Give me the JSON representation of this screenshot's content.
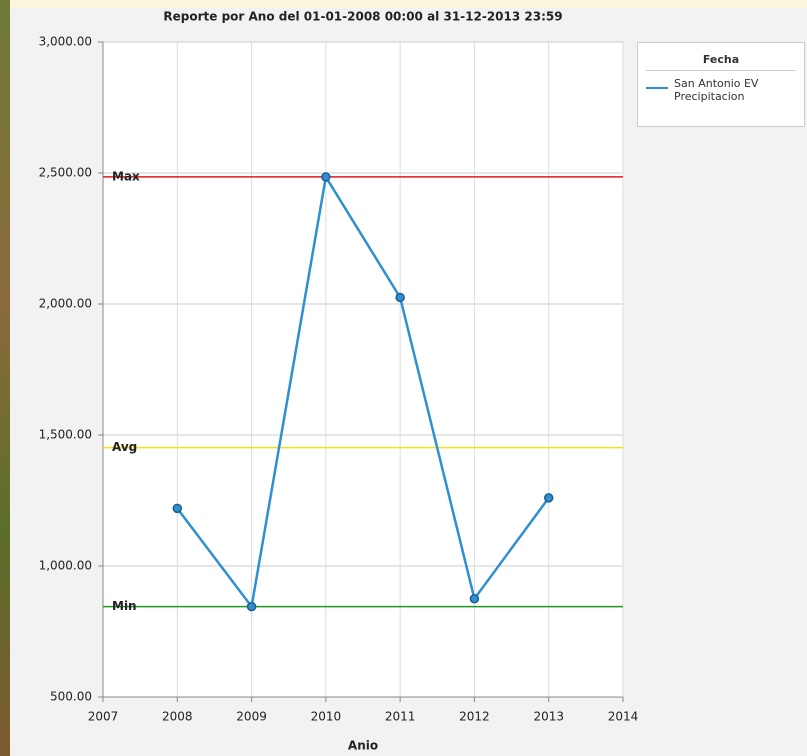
{
  "chart_data": {
    "type": "line",
    "title": "Reporte por Ano del 01-01-2008 00:00 al 31-12-2013 23:59",
    "xlabel": "Anio",
    "x": [
      2008,
      2009,
      2010,
      2011,
      2012,
      2013
    ],
    "series": [
      {
        "name": "San Antonio EV Precipitacion",
        "color": "#2e8fd1",
        "values": [
          1220,
          845,
          2485,
          2025,
          875,
          1260
        ]
      }
    ],
    "xlim": [
      2007,
      2014
    ],
    "xticks": [
      2007,
      2008,
      2009,
      2010,
      2011,
      2012,
      2013,
      2014
    ],
    "ylim": [
      500,
      3000
    ],
    "yticks": [
      {
        "value": 500,
        "label": "500.00"
      },
      {
        "value": 1000,
        "label": "1,000.00"
      },
      {
        "value": 1500,
        "label": "1,500.00"
      },
      {
        "value": 2000,
        "label": "2,000.00"
      },
      {
        "value": 2500,
        "label": "2,500.00"
      },
      {
        "value": 3000,
        "label": "3,000.00"
      }
    ],
    "grid": true,
    "legend_title": "Fecha",
    "reference_lines": [
      {
        "label": "Max",
        "value": 2485,
        "color": "#e8141b"
      },
      {
        "label": "Avg",
        "value": 1452,
        "color": "#f2e21a",
        "label_color": "#1f2a7a"
      },
      {
        "label": "Min",
        "value": 845,
        "color": "#1f9a1f"
      }
    ]
  }
}
